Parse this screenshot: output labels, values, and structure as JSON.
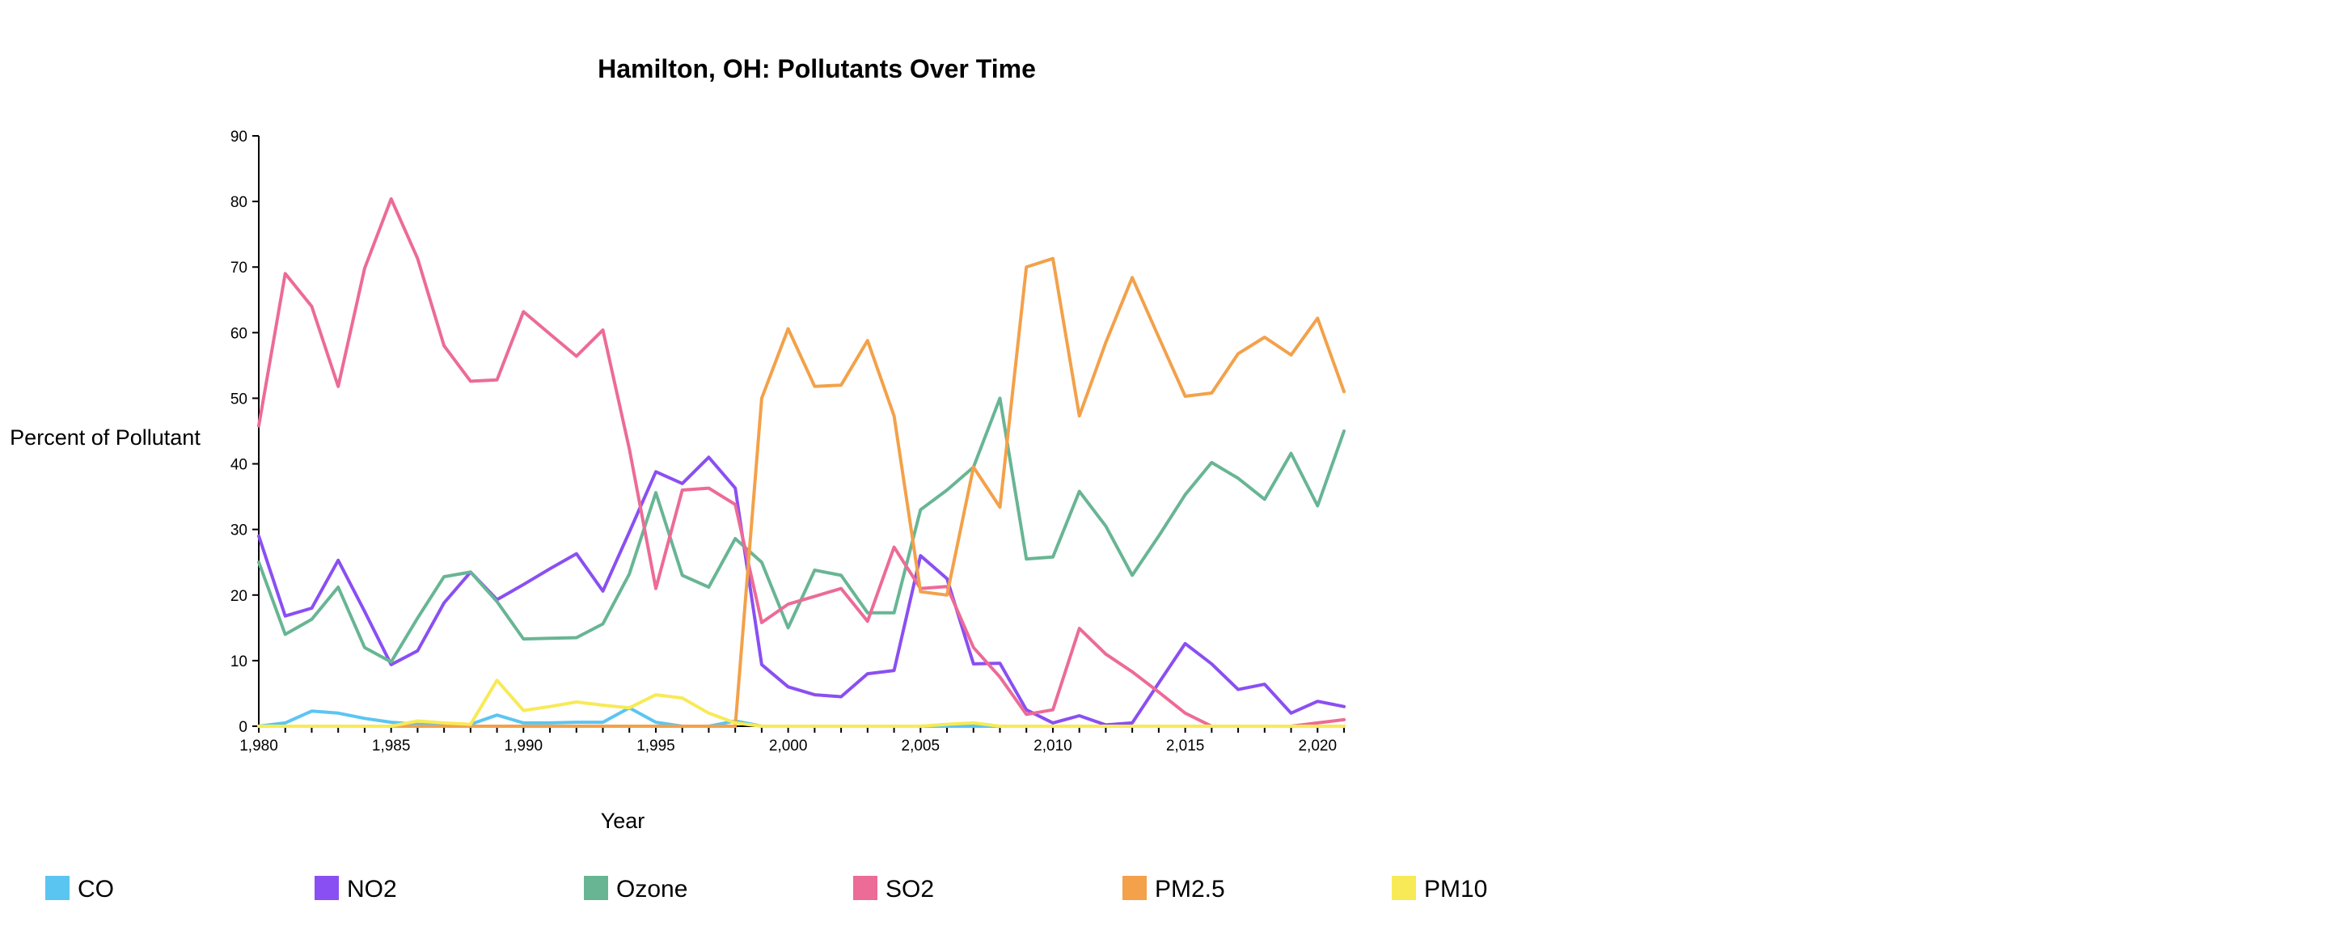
{
  "chart_data": {
    "type": "line",
    "title": "Hamilton, OH: Pollutants Over Time",
    "xlabel": "Year",
    "ylabel": "Percent of Pollutant",
    "xlim": [
      1980,
      2021
    ],
    "ylim": [
      0,
      90
    ],
    "x_ticks": [
      "1,980",
      "1,985",
      "1,990",
      "1,995",
      "2,000",
      "2,005",
      "2,010",
      "2,015",
      "2,020"
    ],
    "y_ticks": [
      "0",
      "10",
      "20",
      "30",
      "40",
      "50",
      "60",
      "70",
      "80",
      "90"
    ],
    "legend_position": "bottom",
    "x": [
      1980,
      1981,
      1982,
      1983,
      1984,
      1985,
      1986,
      1987,
      1988,
      1989,
      1990,
      1991,
      1992,
      1993,
      1994,
      1995,
      1996,
      1997,
      1998,
      1999,
      2000,
      2001,
      2002,
      2003,
      2004,
      2005,
      2006,
      2007,
      2008,
      2009,
      2010,
      2011,
      2012,
      2013,
      2014,
      2015,
      2016,
      2017,
      2018,
      2019,
      2020,
      2021
    ],
    "series": [
      {
        "name": "CO",
        "color": "#5bc5f2",
        "values": [
          0,
          0.5,
          2.3,
          2.0,
          1.2,
          0.6,
          0.3,
          0.2,
          0.3,
          1.7,
          0.5,
          0.5,
          0.6,
          0.6,
          2.8,
          0.6,
          0,
          0,
          0.8,
          0,
          0,
          0,
          0,
          0,
          0,
          0,
          0,
          0,
          0,
          0,
          0,
          0,
          0,
          0,
          0,
          0,
          0,
          0,
          0,
          0,
          0,
          0
        ]
      },
      {
        "name": "NO2",
        "color": "#8a4ff2",
        "values": [
          29,
          16.8,
          18,
          25.3,
          17.5,
          9.4,
          11.5,
          18.8,
          23.5,
          19.3,
          21.6,
          24,
          26.3,
          20.6,
          29.6,
          38.8,
          37,
          41,
          36.3,
          9.4,
          6,
          4.8,
          4.5,
          8,
          8.5,
          26,
          22.5,
          9.5,
          9.6,
          2.5,
          0.5,
          1.6,
          0.2,
          0.5,
          6.6,
          12.6,
          9.5,
          5.6,
          6.4,
          2,
          3.8,
          3
        ]
      },
      {
        "name": "Ozone",
        "color": "#68b594",
        "values": [
          25,
          14,
          16.3,
          21.2,
          12,
          9.8,
          16.5,
          22.8,
          23.5,
          19,
          13.3,
          13.4,
          13.5,
          15.6,
          23.2,
          35.6,
          23,
          21.2,
          28.6,
          25,
          15,
          23.8,
          23,
          17.3,
          17.3,
          33,
          36,
          39.5,
          50,
          25.5,
          25.8,
          35.8,
          30.5,
          23,
          29,
          35.3,
          40.2,
          37.8,
          34.6,
          41.6,
          33.6,
          45
        ]
      },
      {
        "name": "SO2",
        "color": "#ec6b97",
        "values": [
          45.8,
          69,
          64,
          51.8,
          69.8,
          80.4,
          71.3,
          58,
          52.6,
          52.8,
          63.2,
          59.8,
          56.4,
          60.4,
          42.3,
          21,
          36,
          36.3,
          33.8,
          15.8,
          18.6,
          19.8,
          21,
          16,
          27.3,
          21,
          21.3,
          12,
          7.5,
          1.8,
          2.5,
          14.9,
          11,
          8.3,
          5.2,
          2,
          0,
          0,
          0,
          0,
          0.5,
          1
        ]
      },
      {
        "name": "PM2.5",
        "color": "#f3a14a",
        "values": [
          0,
          0,
          0,
          0,
          0,
          0,
          0,
          0,
          0,
          0,
          0,
          0,
          0,
          0,
          0,
          0,
          0,
          0,
          0,
          50,
          60.6,
          51.8,
          52,
          58.8,
          47.3,
          20.5,
          20,
          39.5,
          33.4,
          70,
          71.3,
          47.3,
          58.5,
          68.4,
          59.3,
          50.3,
          50.8,
          56.8,
          59.3,
          56.6,
          62.2,
          51
        ]
      },
      {
        "name": "PM10",
        "color": "#f7ea56",
        "values": [
          0,
          0,
          0,
          0,
          0,
          0,
          0.8,
          0.5,
          0.3,
          7,
          2.4,
          3,
          3.7,
          3.2,
          2.8,
          4.8,
          4.3,
          2,
          0.5,
          0,
          0,
          0,
          0,
          0,
          0,
          0,
          0.3,
          0.5,
          0,
          0,
          0,
          0,
          0,
          0,
          0,
          0,
          0,
          0,
          0,
          0,
          0,
          0
        ]
      }
    ]
  }
}
